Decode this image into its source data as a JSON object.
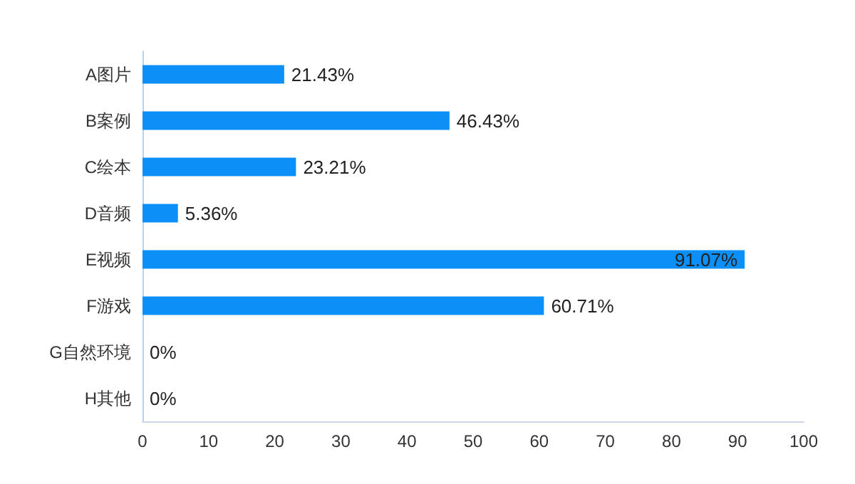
{
  "chart_data": {
    "type": "bar",
    "orientation": "horizontal",
    "categories": [
      "A图片",
      "B案例",
      "C绘本",
      "D音频",
      "E视频",
      "F游戏",
      "G自然环境",
      "H其他"
    ],
    "values": [
      21.43,
      46.43,
      23.21,
      5.36,
      91.07,
      60.71,
      0,
      0
    ],
    "value_labels": [
      "21.43%",
      "46.43%",
      "23.21%",
      "5.36%",
      "91.07%",
      "60.71%",
      "0%",
      "0%"
    ],
    "color": "#0c8ff7",
    "xlim": [
      0,
      100
    ],
    "xticks": [
      0,
      10,
      20,
      30,
      40,
      50,
      60,
      70,
      80,
      90,
      100
    ],
    "grid": false
  }
}
